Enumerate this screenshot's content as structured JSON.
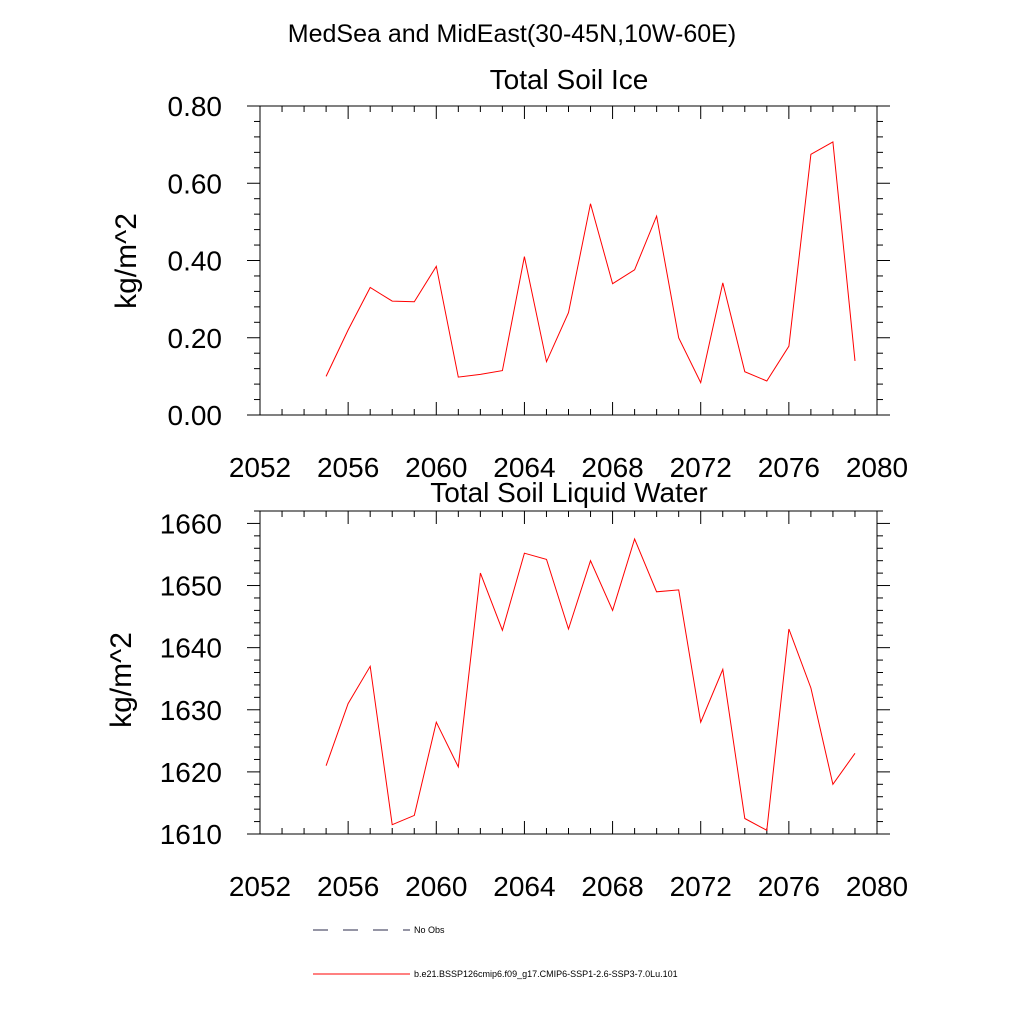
{
  "figure": {
    "title": "MedSea and MidEast(30-45N,10W-60E)"
  },
  "chart_data": [
    {
      "type": "line",
      "title": "Total Soil Ice",
      "xlabel": "",
      "ylabel": "kg/m^2",
      "xlim": [
        2052,
        2080
      ],
      "ylim": [
        0,
        0.8
      ],
      "xticks": [
        2052,
        2056,
        2060,
        2064,
        2068,
        2072,
        2076,
        2080
      ],
      "yticks": [
        0.0,
        0.2,
        0.4,
        0.6,
        0.8
      ],
      "ytick_labels": [
        "0.00",
        "0.20",
        "0.40",
        "0.60",
        "0.80"
      ],
      "grid": false,
      "x": [
        2055,
        2056,
        2057,
        2058,
        2059,
        2060,
        2061,
        2062,
        2063,
        2064,
        2065,
        2066,
        2067,
        2068,
        2069,
        2070,
        2071,
        2072,
        2073,
        2074,
        2075,
        2076,
        2077,
        2078,
        2079
      ],
      "series": [
        {
          "name": "b.e21.BSSP126cmip6.f09_g17.CMIP6-SSP1-2.6-SSP3-7.0Lu.101",
          "color": "#ff0000",
          "values": [
            0.1,
            0.22,
            0.33,
            0.295,
            0.293,
            0.385,
            0.098,
            0.105,
            0.115,
            0.41,
            0.138,
            0.265,
            0.547,
            0.34,
            0.376,
            0.515,
            0.2,
            0.084,
            0.342,
            0.112,
            0.088,
            0.178,
            0.675,
            0.707,
            0.14
          ]
        }
      ]
    },
    {
      "type": "line",
      "title": "Total Soil Liquid Water",
      "xlabel": "",
      "ylabel": "kg/m^2",
      "xlim": [
        2052,
        2080
      ],
      "ylim": [
        1610,
        1662
      ],
      "xticks": [
        2052,
        2056,
        2060,
        2064,
        2068,
        2072,
        2076,
        2080
      ],
      "yticks": [
        1610,
        1620,
        1630,
        1640,
        1650,
        1660
      ],
      "ytick_labels": [
        "1610",
        "1620",
        "1630",
        "1640",
        "1650",
        "1660"
      ],
      "grid": false,
      "x": [
        2055,
        2056,
        2057,
        2058,
        2059,
        2060,
        2061,
        2062,
        2063,
        2064,
        2065,
        2066,
        2067,
        2068,
        2069,
        2070,
        2071,
        2072,
        2073,
        2074,
        2075,
        2076,
        2077,
        2078,
        2079
      ],
      "series": [
        {
          "name": "b.e21.BSSP126cmip6.f09_g17.CMIP6-SSP1-2.6-SSP3-7.0Lu.101",
          "color": "#ff0000",
          "values": [
            1621,
            1631,
            1637,
            1611.5,
            1613,
            1628,
            1620.8,
            1652,
            1642.8,
            1655.2,
            1654.2,
            1643,
            1654,
            1646,
            1657.5,
            1649,
            1649.3,
            1628,
            1636.5,
            1612.5,
            1610.6,
            1643,
            1633.5,
            1618,
            1623
          ]
        }
      ]
    }
  ],
  "legend": {
    "items": [
      {
        "label": "No Obs",
        "style": "dashed",
        "color": "#2b2b4b"
      },
      {
        "label": "b.e21.BSSP126cmip6.f09_g17.CMIP6-SSP1-2.6-SSP3-7.0Lu.101",
        "style": "solid",
        "color": "#ff0000"
      }
    ]
  }
}
